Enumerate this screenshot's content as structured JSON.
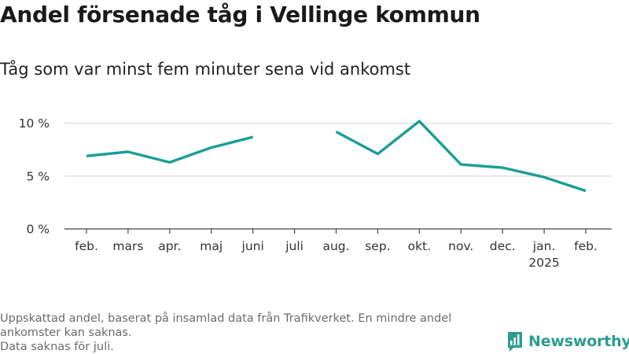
{
  "title": "Andel försenade tåg i Vellinge kommun",
  "subtitle": "Tåg som var minst fem minuter sena vid ankomst",
  "footnote": {
    "line1": "Uppskattad andel, baserat på insamlad data från Trafikverket. En mindre andel",
    "line2": "ankomster kan saknas.",
    "line3": "Data saknas för juli."
  },
  "brand": {
    "name": "Newsworthy",
    "color": "#2b9c8f",
    "icon": "newsworthy-bar-icon"
  },
  "chart_data": {
    "type": "line",
    "categories": [
      "feb.",
      "mars",
      "apr.",
      "maj",
      "juni",
      "juli",
      "aug.",
      "sep.",
      "okt.",
      "nov.",
      "dec.",
      "jan.",
      "feb."
    ],
    "category_sublabels": [
      "",
      "",
      "",
      "",
      "",
      "",
      "",
      "",
      "",
      "",
      "",
      "2025",
      ""
    ],
    "values": [
      6.9,
      7.3,
      6.3,
      7.7,
      8.7,
      null,
      9.2,
      7.1,
      10.2,
      6.1,
      5.8,
      4.9,
      3.6
    ],
    "ylim": [
      0,
      10.5
    ],
    "yticks": [
      0,
      5,
      10
    ],
    "ytick_labels": [
      "0 %",
      "5 %",
      "10 %"
    ],
    "xlabel": "",
    "ylabel": "",
    "grid": true,
    "color": "#1a9e96",
    "axis_color": "#444444",
    "grid_color": "#d9d9d9"
  }
}
